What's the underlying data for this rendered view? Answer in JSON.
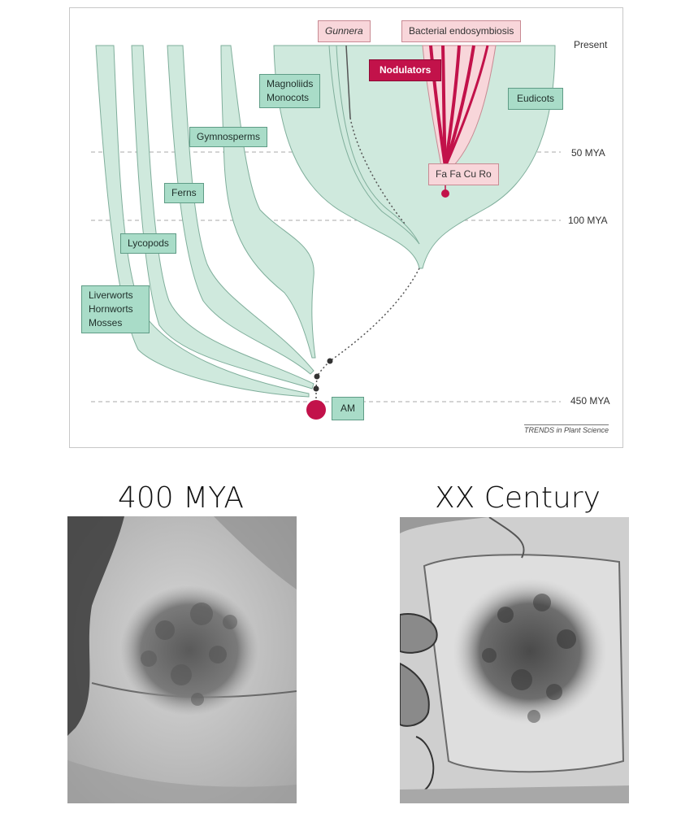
{
  "tree": {
    "labels": {
      "liverworts": "Liverworts\nHornworts\nMosses",
      "lycopods": "Lycopods",
      "ferns": "Ferns",
      "gymnosperms": "Gymnosperms",
      "magnoliids": "Magnoliids\nMonocots",
      "gunnera": "Gunnera",
      "bacterial": "Bacterial endosymbiosis",
      "nodulators": "Nodulators",
      "eudicots": "Eudicots",
      "fafacuro": "Fa Fa Cu Ro",
      "am": "AM"
    },
    "time_markers": {
      "present": "Present",
      "mya50": "50 MYA",
      "mya100": "100 MYA",
      "mya450": "450 MYA"
    },
    "credit": "TRENDS in Plant Science",
    "colors": {
      "clade_fill": "#cfe9dd",
      "clade_stroke": "#7fae9b",
      "label_fill": "#a9dcc8",
      "nodulator_dark": "#c2124a",
      "nodulator_light": "#f8d6da"
    }
  },
  "panels": {
    "left_title": "400 MYA",
    "right_title": "XX Century"
  }
}
